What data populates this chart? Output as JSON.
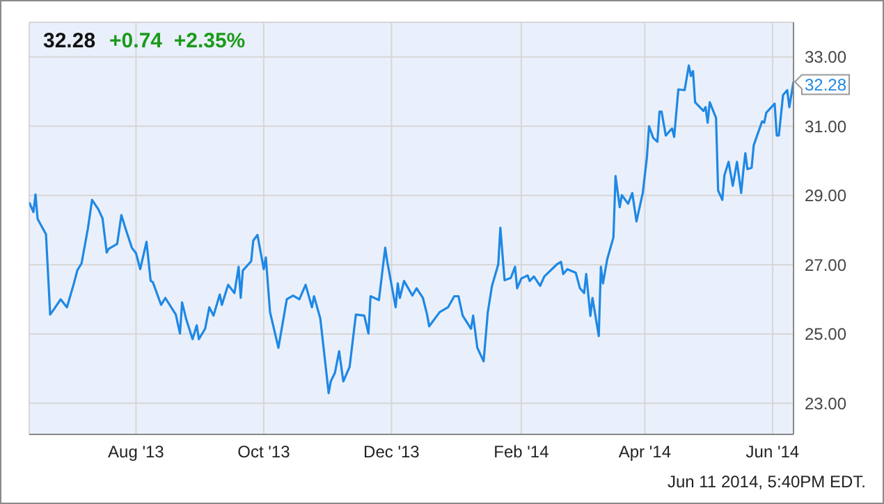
{
  "chart_data": {
    "type": "line",
    "title": "32.28",
    "subtitle": "+0.74  +2.35%",
    "x": [
      "2013-06-11",
      "2013-06-13",
      "2013-06-14",
      "2013-06-15",
      "2013-06-19",
      "2013-06-21",
      "2013-06-23",
      "2013-06-26",
      "2013-06-29",
      "2013-07-02",
      "2013-07-04",
      "2013-07-06",
      "2013-07-09",
      "2013-07-11",
      "2013-07-14",
      "2013-07-16",
      "2013-07-18",
      "2013-07-19",
      "2013-07-23",
      "2013-07-25",
      "2013-07-27",
      "2013-07-30",
      "2013-08-01",
      "2013-08-03",
      "2013-08-06",
      "2013-08-08",
      "2013-08-09",
      "2013-08-13",
      "2013-08-15",
      "2013-08-20",
      "2013-08-22",
      "2013-08-23",
      "2013-08-25",
      "2013-08-28",
      "2013-08-30",
      "2013-08-31",
      "2013-09-03",
      "2013-09-05",
      "2013-09-07",
      "2013-09-10",
      "2013-09-11",
      "2013-09-14",
      "2013-09-17",
      "2013-09-19",
      "2013-09-20",
      "2013-09-21",
      "2013-09-25",
      "2013-09-26",
      "2013-09-28",
      "2013-10-01",
      "2013-10-02",
      "2013-10-04",
      "2013-10-08",
      "2013-10-12",
      "2013-10-15",
      "2013-10-18",
      "2013-10-21",
      "2013-10-24",
      "2013-10-25",
      "2013-10-28",
      "2013-11-01",
      "2013-11-02",
      "2013-11-04",
      "2013-11-06",
      "2013-11-08",
      "2013-11-11",
      "2013-11-14",
      "2013-11-18",
      "2013-11-20",
      "2013-11-21",
      "2013-11-25",
      "2013-11-28",
      "2013-11-29",
      "2013-12-03",
      "2013-12-04",
      "2013-12-05",
      "2013-12-07",
      "2013-12-11",
      "2013-12-13",
      "2013-12-16",
      "2013-12-18",
      "2013-12-19",
      "2013-12-24",
      "2013-12-28",
      "2013-12-31",
      "2014-01-02",
      "2014-01-04",
      "2014-01-08",
      "2014-01-09",
      "2014-01-11",
      "2014-01-14",
      "2014-01-16",
      "2014-01-18",
      "2014-01-21",
      "2014-01-22",
      "2014-01-24",
      "2014-01-27",
      "2014-01-29",
      "2014-01-30",
      "2014-02-01",
      "2014-02-04",
      "2014-02-05",
      "2014-02-07",
      "2014-02-10",
      "2014-02-12",
      "2014-02-18",
      "2014-02-20",
      "2014-02-21",
      "2014-02-23",
      "2014-02-27",
      "2014-03-01",
      "2014-03-03",
      "2014-03-04",
      "2014-03-06",
      "2014-03-07",
      "2014-03-10",
      "2014-03-11",
      "2014-03-12",
      "2014-03-14",
      "2014-03-17",
      "2014-03-18",
      "2014-03-20",
      "2014-03-21",
      "2014-03-24",
      "2014-03-26",
      "2014-03-28",
      "2014-03-31",
      "2014-04-02",
      "2014-04-03",
      "2014-04-05",
      "2014-04-07",
      "2014-04-08",
      "2014-04-09",
      "2014-04-11",
      "2014-04-13",
      "2014-04-14",
      "2014-04-15",
      "2014-04-17",
      "2014-04-20",
      "2014-04-22",
      "2014-04-23",
      "2014-04-24",
      "2014-04-25",
      "2014-04-29",
      "2014-04-30",
      "2014-05-01",
      "2014-05-02",
      "2014-05-05",
      "2014-05-06",
      "2014-05-07",
      "2014-05-08",
      "2014-05-09",
      "2014-05-11",
      "2014-05-13",
      "2014-05-15",
      "2014-05-17",
      "2014-05-18",
      "2014-05-19",
      "2014-05-20",
      "2014-05-22",
      "2014-05-23",
      "2014-05-27",
      "2014-05-28",
      "2014-05-29",
      "2014-06-02",
      "2014-06-03",
      "2014-06-04",
      "2014-06-06",
      "2014-06-08",
      "2014-06-09",
      "2014-06-11"
    ],
    "series": [
      {
        "color": "#1e88e5",
        "values": [
          28.8,
          28.52,
          29.03,
          28.32,
          27.88,
          25.56,
          25.73,
          26.0,
          25.77,
          26.39,
          26.84,
          27.04,
          28.04,
          28.87,
          28.6,
          28.34,
          27.35,
          27.46,
          27.6,
          28.43,
          28.04,
          27.49,
          27.33,
          26.87,
          27.66,
          26.53,
          26.5,
          25.84,
          26.04,
          25.56,
          25.01,
          25.91,
          25.42,
          24.85,
          25.25,
          24.85,
          25.15,
          25.77,
          25.53,
          26.14,
          25.84,
          26.42,
          26.18,
          26.94,
          26.04,
          26.83,
          27.1,
          27.7,
          27.86,
          26.87,
          27.21,
          25.63,
          24.6,
          26.0,
          26.11,
          26.0,
          26.42,
          25.77,
          26.09,
          25.45,
          23.29,
          23.63,
          23.88,
          24.5,
          23.63,
          24.05,
          25.56,
          25.53,
          25.01,
          26.09,
          25.98,
          27.49,
          27.08,
          25.77,
          26.46,
          26.04,
          26.53,
          26.11,
          26.32,
          26.04,
          25.56,
          25.22,
          25.63,
          25.77,
          26.09,
          26.09,
          25.53,
          25.15,
          25.53,
          24.6,
          24.21,
          25.63,
          26.39,
          27.01,
          28.07,
          26.55,
          26.62,
          26.94,
          26.32,
          26.6,
          26.69,
          26.53,
          26.66,
          26.39,
          26.66,
          27.01,
          27.08,
          26.73,
          26.87,
          26.77,
          26.32,
          26.18,
          26.73,
          25.52,
          26.04,
          24.94,
          26.94,
          26.46,
          27.15,
          27.79,
          29.56,
          28.66,
          29.01,
          28.76,
          29.07,
          28.25,
          29.07,
          30.11,
          31.0,
          30.66,
          30.55,
          31.42,
          31.42,
          30.73,
          30.87,
          30.93,
          30.69,
          32.06,
          32.04,
          32.75,
          32.45,
          32.59,
          31.69,
          31.44,
          31.55,
          31.1,
          31.69,
          31.24,
          29.14,
          29.01,
          28.87,
          29.58,
          29.97,
          29.28,
          29.97,
          29.07,
          29.69,
          30.22,
          29.76,
          29.8,
          30.45,
          31.14,
          31.1,
          31.39,
          31.65,
          30.73,
          30.73,
          31.9,
          32.04,
          31.55,
          32.28
        ]
      }
    ],
    "xlim": [
      "2013-06-11",
      "2014-06-11"
    ],
    "xticks": [
      {
        "value": "2013-08-01",
        "label": "Aug '13"
      },
      {
        "value": "2013-10-01",
        "label": "Oct '13"
      },
      {
        "value": "2013-12-01",
        "label": "Dec '13"
      },
      {
        "value": "2014-02-01",
        "label": "Feb '14"
      },
      {
        "value": "2014-04-01",
        "label": "Apr '14"
      },
      {
        "value": "2014-06-01",
        "label": "Jun '14"
      }
    ],
    "ylim": [
      22.1,
      34.0
    ],
    "yticks": [
      {
        "value": 23,
        "label": "23.00"
      },
      {
        "value": 25,
        "label": "25.00"
      },
      {
        "value": 27,
        "label": "27.00"
      },
      {
        "value": 29,
        "label": "29.00"
      },
      {
        "value": 31,
        "label": "31.00"
      },
      {
        "value": 33,
        "label": "33.00"
      }
    ],
    "grid": true,
    "marker": "none",
    "line_style": "solid",
    "annotations": [
      {
        "text": "32.28",
        "x": "2014-06-11",
        "y": 32.28
      },
      "Jun 11 2014, 5:40PM EDT."
    ]
  }
}
